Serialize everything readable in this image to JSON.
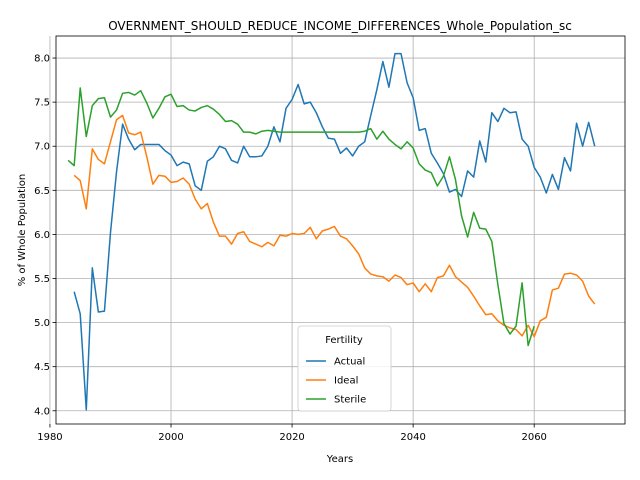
{
  "chart_data": {
    "type": "line",
    "title": "OVERNMENT_SHOULD_REDUCE_INCOME_DIFFERENCES_Whole_Population_sc",
    "xlabel": "Years",
    "ylabel": "% of Whole Population",
    "xlim": [
      1981,
      2075
    ],
    "ylim": [
      3.85,
      8.25
    ],
    "x_ticks": [
      1980,
      2000,
      2020,
      2040,
      2060
    ],
    "y_ticks": [
      4.0,
      4.5,
      5.0,
      5.5,
      6.0,
      6.5,
      7.0,
      7.5,
      8.0
    ],
    "x_tick_labels": [
      "1980",
      "2000",
      "2020",
      "2040",
      "2060"
    ],
    "y_tick_labels": [
      "4.0",
      "4.5",
      "5.0",
      "5.5",
      "6.0",
      "6.5",
      "7.0",
      "7.5",
      "8.0"
    ],
    "grid": true,
    "legend": {
      "title": "Fertility",
      "placement": "lower-center"
    },
    "series": [
      {
        "name": "Actual",
        "color": "#1f77b4",
        "x": [
          1984,
          1985,
          1986,
          1987,
          1988,
          1989,
          1990,
          1991,
          1992,
          1993,
          1994,
          1995,
          1996,
          1997,
          1998,
          1999,
          2000,
          2001,
          2002,
          2003,
          2004,
          2005,
          2006,
          2007,
          2008,
          2009,
          2010,
          2011,
          2012,
          2013,
          2014,
          2015,
          2016,
          2017,
          2018,
          2019,
          2020,
          2021,
          2022,
          2023,
          2024,
          2025,
          2026,
          2027,
          2028,
          2029,
          2030,
          2031,
          2032,
          2033,
          2034,
          2035,
          2036,
          2037,
          2038,
          2039,
          2040,
          2041,
          2042,
          2043,
          2044,
          2045,
          2046,
          2047,
          2048,
          2049,
          2050,
          2051,
          2052,
          2053,
          2054,
          2055,
          2056,
          2057,
          2058,
          2059,
          2060,
          2061,
          2062,
          2063,
          2064,
          2065,
          2066,
          2067,
          2068,
          2069,
          2070
        ],
        "values": [
          5.35,
          5.1,
          4.01,
          5.62,
          5.12,
          5.13,
          6.02,
          6.71,
          7.25,
          7.08,
          6.96,
          7.02,
          7.02,
          7.02,
          7.02,
          6.95,
          6.9,
          6.78,
          6.82,
          6.8,
          6.55,
          6.5,
          6.83,
          6.88,
          7.0,
          6.97,
          6.84,
          6.81,
          7.0,
          6.88,
          6.88,
          6.89,
          7.0,
          7.22,
          7.05,
          7.43,
          7.53,
          7.7,
          7.48,
          7.5,
          7.38,
          7.22,
          7.09,
          7.08,
          6.92,
          6.98,
          6.89,
          7.0,
          7.05,
          7.35,
          7.64,
          7.96,
          7.67,
          8.05,
          8.05,
          7.72,
          7.55,
          7.18,
          7.2,
          6.92,
          6.81,
          6.69,
          6.48,
          6.51,
          6.43,
          6.72,
          6.65,
          7.06,
          6.82,
          7.38,
          7.28,
          7.43,
          7.38,
          7.39,
          7.08,
          7.0,
          6.76,
          6.65,
          6.47,
          6.68,
          6.51,
          6.87,
          6.72,
          7.26,
          7.0,
          7.27,
          7.0
        ]
      },
      {
        "name": "Ideal",
        "color": "#ff7f0e",
        "x": [
          1984,
          1985,
          1986,
          1987,
          1988,
          1989,
          1990,
          1991,
          1992,
          1993,
          1994,
          1995,
          1996,
          1997,
          1998,
          1999,
          2000,
          2001,
          2002,
          2003,
          2004,
          2005,
          2006,
          2007,
          2008,
          2009,
          2010,
          2011,
          2012,
          2013,
          2014,
          2015,
          2016,
          2017,
          2018,
          2019,
          2020,
          2021,
          2022,
          2023,
          2024,
          2025,
          2026,
          2027,
          2028,
          2029,
          2030,
          2031,
          2032,
          2033,
          2034,
          2035,
          2036,
          2037,
          2038,
          2039,
          2040,
          2041,
          2042,
          2043,
          2044,
          2045,
          2046,
          2047,
          2048,
          2049,
          2050,
          2051,
          2052,
          2053,
          2054,
          2055,
          2056,
          2057,
          2058,
          2059,
          2060,
          2061,
          2062,
          2063,
          2064,
          2065,
          2066,
          2067,
          2068,
          2069,
          2070
        ],
        "values": [
          6.67,
          6.61,
          6.29,
          6.97,
          6.85,
          6.8,
          7.05,
          7.3,
          7.35,
          7.15,
          7.13,
          7.16,
          6.88,
          6.57,
          6.67,
          6.66,
          6.59,
          6.6,
          6.64,
          6.57,
          6.4,
          6.29,
          6.35,
          6.14,
          5.98,
          5.98,
          5.89,
          6.01,
          6.03,
          5.92,
          5.89,
          5.86,
          5.91,
          5.87,
          5.99,
          5.98,
          6.01,
          6.0,
          6.01,
          6.08,
          5.95,
          6.04,
          6.06,
          6.09,
          5.98,
          5.95,
          5.87,
          5.78,
          5.62,
          5.55,
          5.53,
          5.52,
          5.47,
          5.54,
          5.51,
          5.43,
          5.45,
          5.35,
          5.44,
          5.35,
          5.51,
          5.53,
          5.65,
          5.52,
          5.46,
          5.4,
          5.3,
          5.19,
          5.09,
          5.1,
          5.02,
          4.97,
          4.94,
          4.92,
          4.85,
          4.97,
          4.84,
          5.02,
          5.06,
          5.37,
          5.39,
          5.55,
          5.56,
          5.54,
          5.47,
          5.3,
          5.21
        ]
      },
      {
        "name": "Sterile",
        "color": "#2ca02c",
        "x": [
          1983,
          1984,
          1985,
          1986,
          1987,
          1988,
          1989,
          1990,
          1991,
          1992,
          1993,
          1994,
          1995,
          1996,
          1997,
          1998,
          1999,
          2000,
          2001,
          2002,
          2003,
          2004,
          2005,
          2006,
          2007,
          2008,
          2009,
          2010,
          2011,
          2012,
          2013,
          2014,
          2015,
          2016,
          2017,
          2018,
          2019,
          2020,
          2021,
          2022,
          2023,
          2024,
          2025,
          2026,
          2027,
          2028,
          2029,
          2030,
          2031,
          2032,
          2033,
          2034,
          2035,
          2036,
          2037,
          2038,
          2039,
          2040,
          2041,
          2042,
          2043,
          2044,
          2045,
          2046,
          2047,
          2048,
          2049,
          2050,
          2051,
          2052,
          2053,
          2054,
          2055,
          2056,
          2057,
          2058,
          2059,
          2060
        ],
        "values": [
          6.84,
          6.78,
          7.66,
          7.11,
          7.46,
          7.54,
          7.55,
          7.33,
          7.41,
          7.6,
          7.61,
          7.58,
          7.63,
          7.49,
          7.32,
          7.43,
          7.56,
          7.59,
          7.45,
          7.46,
          7.41,
          7.4,
          7.44,
          7.46,
          7.42,
          7.36,
          7.28,
          7.29,
          7.25,
          7.16,
          7.16,
          7.14,
          7.17,
          7.18,
          7.17,
          7.16,
          7.16,
          7.16,
          7.16,
          7.16,
          7.16,
          7.16,
          7.16,
          7.16,
          7.16,
          7.16,
          7.16,
          7.16,
          7.16,
          7.17,
          7.2,
          7.08,
          7.17,
          7.08,
          7.02,
          6.97,
          7.05,
          6.98,
          6.8,
          6.73,
          6.7,
          6.55,
          6.66,
          6.88,
          6.62,
          6.21,
          5.97,
          6.25,
          6.07,
          6.06,
          5.92,
          5.43,
          4.99,
          4.87,
          4.96,
          5.45,
          4.74,
          4.96
        ]
      }
    ]
  }
}
